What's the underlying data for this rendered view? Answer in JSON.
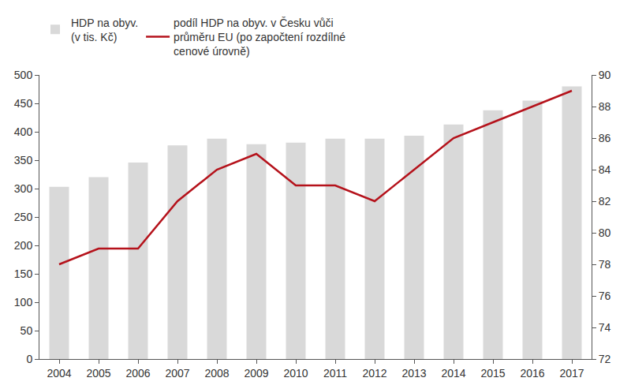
{
  "chart_data": {
    "type": "bar",
    "categories": [
      "2004",
      "2005",
      "2006",
      "2007",
      "2008",
      "2009",
      "2010",
      "2011",
      "2012",
      "2013",
      "2014",
      "2015",
      "2016",
      "2017"
    ],
    "series": [
      {
        "name": "HDP na obyv.\n(v tis. Kč)",
        "type": "bar",
        "color": "#d9d9d9",
        "values": [
          303,
          320,
          346,
          376,
          388,
          378,
          381,
          388,
          388,
          393,
          413,
          438,
          455,
          480
        ]
      },
      {
        "name": "podíl HDP na obyv. v Česku vůči\nprůměru EU (po započtení rozdílné\ncenové úrovně)",
        "type": "line",
        "color": "#b5121b",
        "axis": "y2",
        "values": [
          78,
          79,
          79,
          82,
          84,
          85,
          83,
          83,
          82,
          84,
          86,
          87,
          88,
          89
        ]
      }
    ],
    "ylim": [
      0,
      500
    ],
    "yticks": [
      0,
      50,
      100,
      150,
      200,
      250,
      300,
      350,
      400,
      450,
      500
    ],
    "y2lim": [
      72,
      90
    ],
    "y2ticks": [
      72,
      74,
      76,
      78,
      80,
      82,
      84,
      86,
      88,
      90
    ],
    "grid": false,
    "legend": "top"
  }
}
